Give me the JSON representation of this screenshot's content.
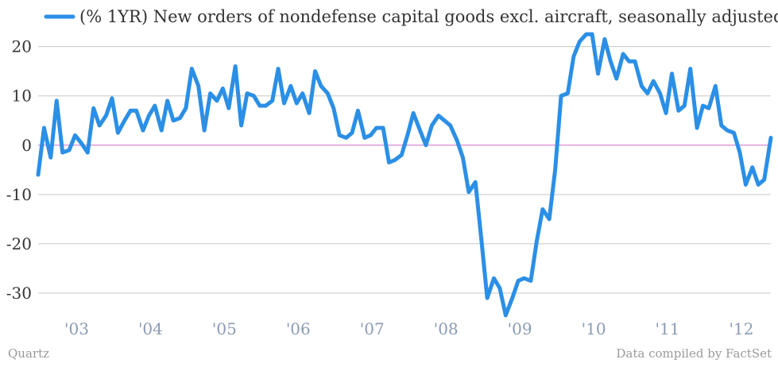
{
  "chart_data": {
    "type": "line",
    "series": [
      {
        "name": "(% 1YR) New orders of nondefense capital goods excl. aircraft, seasonally adjusted",
        "color": "#2b8fe6",
        "points": [
          {
            "x": 2002.5,
            "y": -6.0
          },
          {
            "x": 2002.58,
            "y": 3.5
          },
          {
            "x": 2002.67,
            "y": -2.5
          },
          {
            "x": 2002.75,
            "y": 9.0
          },
          {
            "x": 2002.83,
            "y": -1.5
          },
          {
            "x": 2002.92,
            "y": -1.0
          },
          {
            "x": 2003.0,
            "y": 2.0
          },
          {
            "x": 2003.08,
            "y": 0.5
          },
          {
            "x": 2003.17,
            "y": -1.5
          },
          {
            "x": 2003.25,
            "y": 7.5
          },
          {
            "x": 2003.33,
            "y": 4.0
          },
          {
            "x": 2003.42,
            "y": 6.0
          },
          {
            "x": 2003.5,
            "y": 9.5
          },
          {
            "x": 2003.58,
            "y": 2.5
          },
          {
            "x": 2003.67,
            "y": 5.0
          },
          {
            "x": 2003.75,
            "y": 7.0
          },
          {
            "x": 2003.83,
            "y": 7.0
          },
          {
            "x": 2003.92,
            "y": 3.0
          },
          {
            "x": 2004.0,
            "y": 6.0
          },
          {
            "x": 2004.08,
            "y": 8.0
          },
          {
            "x": 2004.17,
            "y": 3.0
          },
          {
            "x": 2004.25,
            "y": 9.0
          },
          {
            "x": 2004.33,
            "y": 5.0
          },
          {
            "x": 2004.42,
            "y": 5.5
          },
          {
            "x": 2004.5,
            "y": 7.5
          },
          {
            "x": 2004.58,
            "y": 15.5
          },
          {
            "x": 2004.67,
            "y": 12.0
          },
          {
            "x": 2004.75,
            "y": 3.0
          },
          {
            "x": 2004.83,
            "y": 10.5
          },
          {
            "x": 2004.92,
            "y": 9.0
          },
          {
            "x": 2005.0,
            "y": 11.5
          },
          {
            "x": 2005.08,
            "y": 7.5
          },
          {
            "x": 2005.17,
            "y": 16.0
          },
          {
            "x": 2005.25,
            "y": 4.0
          },
          {
            "x": 2005.33,
            "y": 10.5
          },
          {
            "x": 2005.42,
            "y": 10.0
          },
          {
            "x": 2005.5,
            "y": 8.0
          },
          {
            "x": 2005.58,
            "y": 8.0
          },
          {
            "x": 2005.67,
            "y": 9.0
          },
          {
            "x": 2005.75,
            "y": 15.5
          },
          {
            "x": 2005.83,
            "y": 8.5
          },
          {
            "x": 2005.92,
            "y": 12.0
          },
          {
            "x": 2006.0,
            "y": 8.5
          },
          {
            "x": 2006.08,
            "y": 10.5
          },
          {
            "x": 2006.17,
            "y": 6.5
          },
          {
            "x": 2006.25,
            "y": 15.0
          },
          {
            "x": 2006.33,
            "y": 12.0
          },
          {
            "x": 2006.42,
            "y": 10.5
          },
          {
            "x": 2006.5,
            "y": 7.5
          },
          {
            "x": 2006.58,
            "y": 2.0
          },
          {
            "x": 2006.67,
            "y": 1.5
          },
          {
            "x": 2006.75,
            "y": 2.5
          },
          {
            "x": 2006.83,
            "y": 7.0
          },
          {
            "x": 2006.92,
            "y": 1.5
          },
          {
            "x": 2007.0,
            "y": 2.0
          },
          {
            "x": 2007.08,
            "y": 3.5
          },
          {
            "x": 2007.17,
            "y": 3.5
          },
          {
            "x": 2007.25,
            "y": -3.5
          },
          {
            "x": 2007.33,
            "y": -3.0
          },
          {
            "x": 2007.42,
            "y": -2.0
          },
          {
            "x": 2007.5,
            "y": 2.0
          },
          {
            "x": 2007.58,
            "y": 6.5
          },
          {
            "x": 2007.67,
            "y": 3.0
          },
          {
            "x": 2007.75,
            "y": 0.0
          },
          {
            "x": 2007.83,
            "y": 4.0
          },
          {
            "x": 2007.92,
            "y": 6.0
          },
          {
            "x": 2008.0,
            "y": 5.0
          },
          {
            "x": 2008.08,
            "y": 4.0
          },
          {
            "x": 2008.17,
            "y": 1.0
          },
          {
            "x": 2008.25,
            "y": -2.5
          },
          {
            "x": 2008.33,
            "y": -9.5
          },
          {
            "x": 2008.42,
            "y": -7.5
          },
          {
            "x": 2008.5,
            "y": -19.0
          },
          {
            "x": 2008.58,
            "y": -31.0
          },
          {
            "x": 2008.67,
            "y": -27.0
          },
          {
            "x": 2008.75,
            "y": -29.0
          },
          {
            "x": 2008.83,
            "y": -34.5
          },
          {
            "x": 2008.92,
            "y": -31.0
          },
          {
            "x": 2009.0,
            "y": -27.5
          },
          {
            "x": 2009.08,
            "y": -27.0
          },
          {
            "x": 2009.17,
            "y": -27.5
          },
          {
            "x": 2009.25,
            "y": -19.5
          },
          {
            "x": 2009.33,
            "y": -13.0
          },
          {
            "x": 2009.42,
            "y": -15.0
          },
          {
            "x": 2009.5,
            "y": -5.0
          },
          {
            "x": 2009.58,
            "y": 10.0
          },
          {
            "x": 2009.67,
            "y": 10.5
          },
          {
            "x": 2009.75,
            "y": 18.0
          },
          {
            "x": 2009.83,
            "y": 21.0
          },
          {
            "x": 2009.92,
            "y": 22.5
          },
          {
            "x": 2010.0,
            "y": 22.5
          },
          {
            "x": 2010.08,
            "y": 14.5
          },
          {
            "x": 2010.17,
            "y": 21.5
          },
          {
            "x": 2010.25,
            "y": 17.0
          },
          {
            "x": 2010.33,
            "y": 13.5
          },
          {
            "x": 2010.42,
            "y": 18.5
          },
          {
            "x": 2010.5,
            "y": 17.0
          },
          {
            "x": 2010.58,
            "y": 17.0
          },
          {
            "x": 2010.67,
            "y": 12.0
          },
          {
            "x": 2010.75,
            "y": 10.5
          },
          {
            "x": 2010.83,
            "y": 13.0
          },
          {
            "x": 2010.92,
            "y": 10.5
          },
          {
            "x": 2011.0,
            "y": 6.5
          },
          {
            "x": 2011.08,
            "y": 14.5
          },
          {
            "x": 2011.17,
            "y": 7.0
          },
          {
            "x": 2011.25,
            "y": 8.0
          },
          {
            "x": 2011.33,
            "y": 15.5
          },
          {
            "x": 2011.42,
            "y": 3.5
          },
          {
            "x": 2011.5,
            "y": 8.0
          },
          {
            "x": 2011.58,
            "y": 7.5
          },
          {
            "x": 2011.67,
            "y": 12.0
          },
          {
            "x": 2011.75,
            "y": 4.0
          },
          {
            "x": 2011.83,
            "y": 3.0
          },
          {
            "x": 2011.92,
            "y": 2.5
          },
          {
            "x": 2012.0,
            "y": -1.5
          },
          {
            "x": 2012.08,
            "y": -8.0
          },
          {
            "x": 2012.17,
            "y": -4.5
          },
          {
            "x": 2012.25,
            "y": -8.0
          },
          {
            "x": 2012.33,
            "y": -7.0
          },
          {
            "x": 2012.42,
            "y": 1.5
          }
        ]
      }
    ],
    "x_ticks": [
      {
        "value": 2003.0,
        "label": "'03"
      },
      {
        "value": 2004.0,
        "label": "'04"
      },
      {
        "value": 2005.0,
        "label": "'05"
      },
      {
        "value": 2006.0,
        "label": "'06"
      },
      {
        "value": 2007.0,
        "label": "'07"
      },
      {
        "value": 2008.0,
        "label": "'08"
      },
      {
        "value": 2009.0,
        "label": "'09"
      },
      {
        "value": 2010.0,
        "label": "'10"
      },
      {
        "value": 2011.0,
        "label": "'11"
      },
      {
        "value": 2012.0,
        "label": "'12"
      }
    ],
    "y_ticks": [
      20,
      10,
      0,
      -10,
      -20,
      -30
    ],
    "xlim": [
      2002.5,
      2012.42
    ],
    "ylim": [
      -35,
      23
    ],
    "grid": "horizontal",
    "legend_placement": "top",
    "gridline_color": "#c8c8c8",
    "zero_line_color": "#d46bc7"
  },
  "footer": {
    "source_left": "Quartz",
    "source_right": "Data compiled by FactSet"
  }
}
